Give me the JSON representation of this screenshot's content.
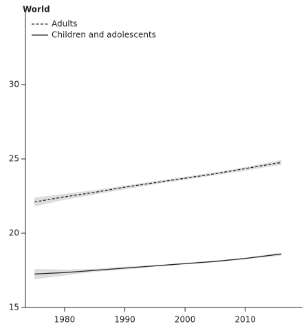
{
  "chart_data": {
    "type": "line",
    "title": "World",
    "x": [
      1975,
      1980,
      1985,
      1990,
      1995,
      2000,
      2005,
      2010,
      2015,
      2016
    ],
    "series": [
      {
        "name": "Adults",
        "color": "#222222",
        "dash": true,
        "values": [
          22.1,
          22.45,
          22.75,
          23.1,
          23.4,
          23.7,
          24.0,
          24.35,
          24.7,
          24.75
        ],
        "lower": [
          21.8,
          22.25,
          22.6,
          22.95,
          23.3,
          23.6,
          23.9,
          24.2,
          24.55,
          24.6
        ],
        "upper": [
          22.4,
          22.65,
          22.9,
          23.2,
          23.5,
          23.8,
          24.1,
          24.45,
          24.85,
          24.95
        ]
      },
      {
        "name": "Children and adolescents",
        "color": "#222222",
        "dash": false,
        "values": [
          17.25,
          17.35,
          17.5,
          17.65,
          17.8,
          17.95,
          18.1,
          18.3,
          18.55,
          18.6
        ],
        "lower": [
          16.9,
          17.15,
          17.4,
          17.55,
          17.75,
          17.9,
          18.05,
          18.25,
          18.45,
          18.5
        ],
        "upper": [
          17.6,
          17.55,
          17.6,
          17.75,
          17.85,
          18.0,
          18.15,
          18.35,
          18.65,
          18.7
        ]
      }
    ],
    "band_color": "#dddddd",
    "xlim": [
      1973.5,
      2019.5
    ],
    "xticks": [
      1980,
      1990,
      2000,
      2010
    ],
    "ylim": [
      15,
      35
    ],
    "yticks": [
      15,
      20,
      25,
      30
    ]
  }
}
